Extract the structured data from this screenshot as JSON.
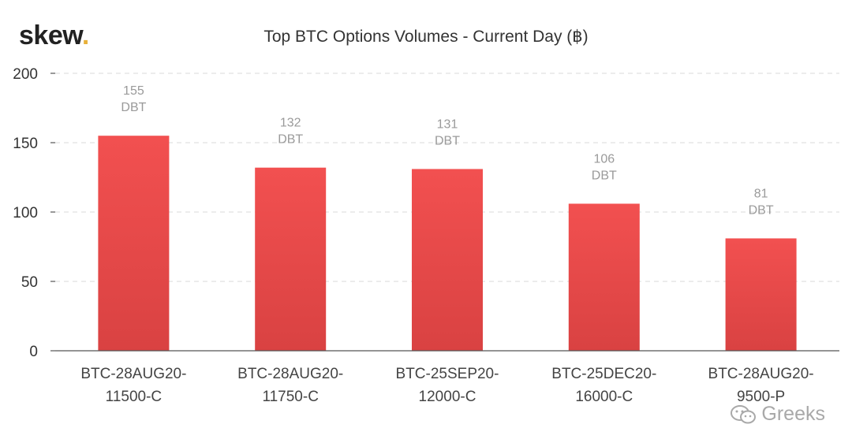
{
  "brand": {
    "name": "skew",
    "dot": "."
  },
  "watermark": {
    "text": "Greeks",
    "icon": "wechat-icon"
  },
  "colors": {
    "bar_top": "#f25050",
    "bar_bottom": "#d94242",
    "label": "#9a9a9a"
  },
  "chart_data": {
    "type": "bar",
    "title": "Top BTC Options Volumes - Current Day (฿)",
    "xlabel": "",
    "ylabel": "",
    "ylim": [
      0,
      200
    ],
    "yticks": [
      0,
      50,
      100,
      150,
      200
    ],
    "grid": true,
    "categories": [
      [
        "BTC-28AUG20-",
        "11500-C"
      ],
      [
        "BTC-28AUG20-",
        "11750-C"
      ],
      [
        "BTC-25SEP20-",
        "12000-C"
      ],
      [
        "BTC-25DEC20-",
        "16000-C"
      ],
      [
        "BTC-28AUG20-",
        "9500-P"
      ]
    ],
    "values": [
      155,
      132,
      131,
      106,
      81
    ],
    "data_labels": [
      [
        "155",
        "DBT"
      ],
      [
        "132",
        "DBT"
      ],
      [
        "131",
        "DBT"
      ],
      [
        "106",
        "DBT"
      ],
      [
        "81",
        "DBT"
      ]
    ]
  }
}
